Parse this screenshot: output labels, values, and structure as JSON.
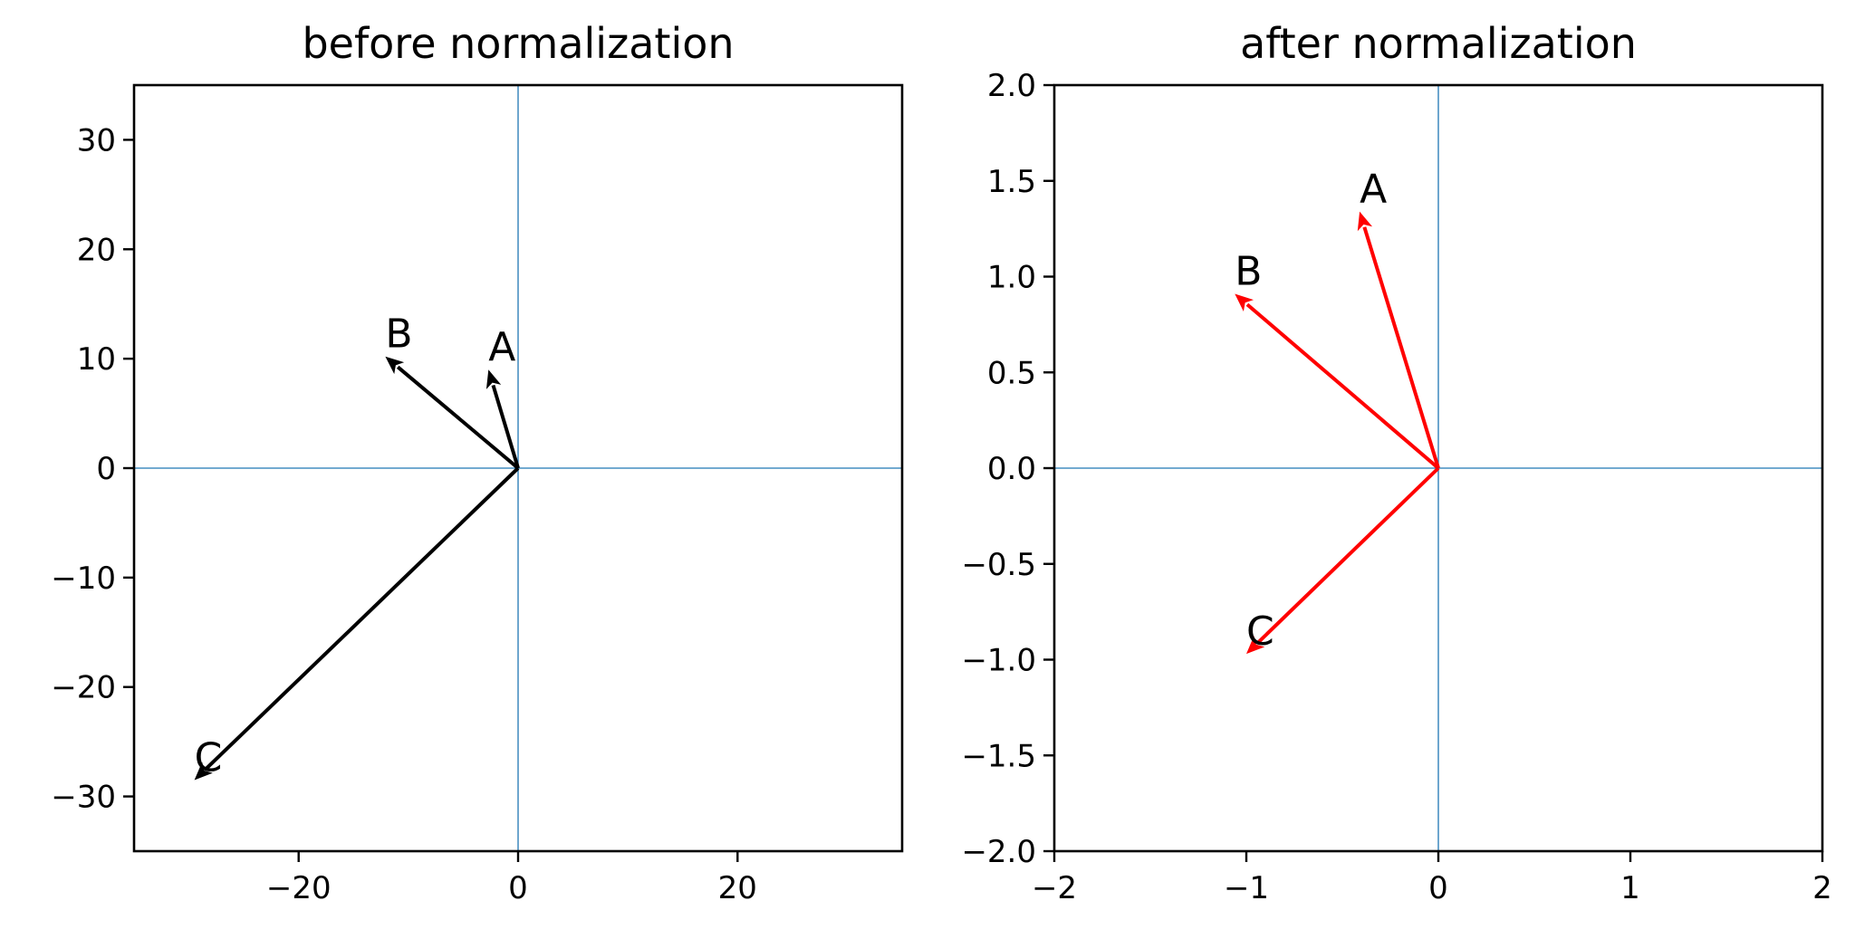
{
  "chart_data": [
    {
      "type": "quiver",
      "title": "before normalization",
      "xlabel": "",
      "ylabel": "",
      "xlim": [
        -35,
        35
      ],
      "ylim": [
        -35,
        35
      ],
      "xticks": [
        -20,
        0,
        20
      ],
      "yticks": [
        -30,
        -20,
        -10,
        0,
        10,
        20,
        30
      ],
      "xtick_labels": [
        "−20",
        "0",
        "20"
      ],
      "ytick_labels": [
        "−30",
        "−20",
        "−10",
        "0",
        "10",
        "20",
        "30"
      ],
      "reference_lines": {
        "x": 0,
        "y": 0,
        "color": "#1f77b4"
      },
      "arrow_color": "#000000",
      "vectors": [
        {
          "label": "A",
          "x": -2.7,
          "y": 9.0
        },
        {
          "label": "B",
          "x": -12.1,
          "y": 10.2
        },
        {
          "label": "C",
          "x": -29.5,
          "y": -28.5
        }
      ]
    },
    {
      "type": "quiver",
      "title": "after normalization",
      "xlabel": "",
      "ylabel": "",
      "xlim": [
        -2,
        2
      ],
      "ylim": [
        -2,
        2
      ],
      "xticks": [
        -2,
        -1,
        0,
        1,
        2
      ],
      "yticks": [
        -2.0,
        -1.5,
        -1.0,
        -0.5,
        0.0,
        0.5,
        1.0,
        1.5,
        2.0
      ],
      "xtick_labels": [
        "−2",
        "−1",
        "0",
        "1",
        "2"
      ],
      "ytick_labels": [
        "−2.0",
        "−1.5",
        "−1.0",
        "−0.5",
        "0.0",
        "0.5",
        "1.0",
        "1.5",
        "2.0"
      ],
      "reference_lines": {
        "x": 0,
        "y": 0,
        "color": "#1f77b4"
      },
      "arrow_color": "#ff0000",
      "vectors": [
        {
          "label": "A",
          "x": -0.41,
          "y": 1.34
        },
        {
          "label": "B",
          "x": -1.06,
          "y": 0.91
        },
        {
          "label": "C",
          "x": -1.0,
          "y": -0.97
        }
      ]
    }
  ]
}
